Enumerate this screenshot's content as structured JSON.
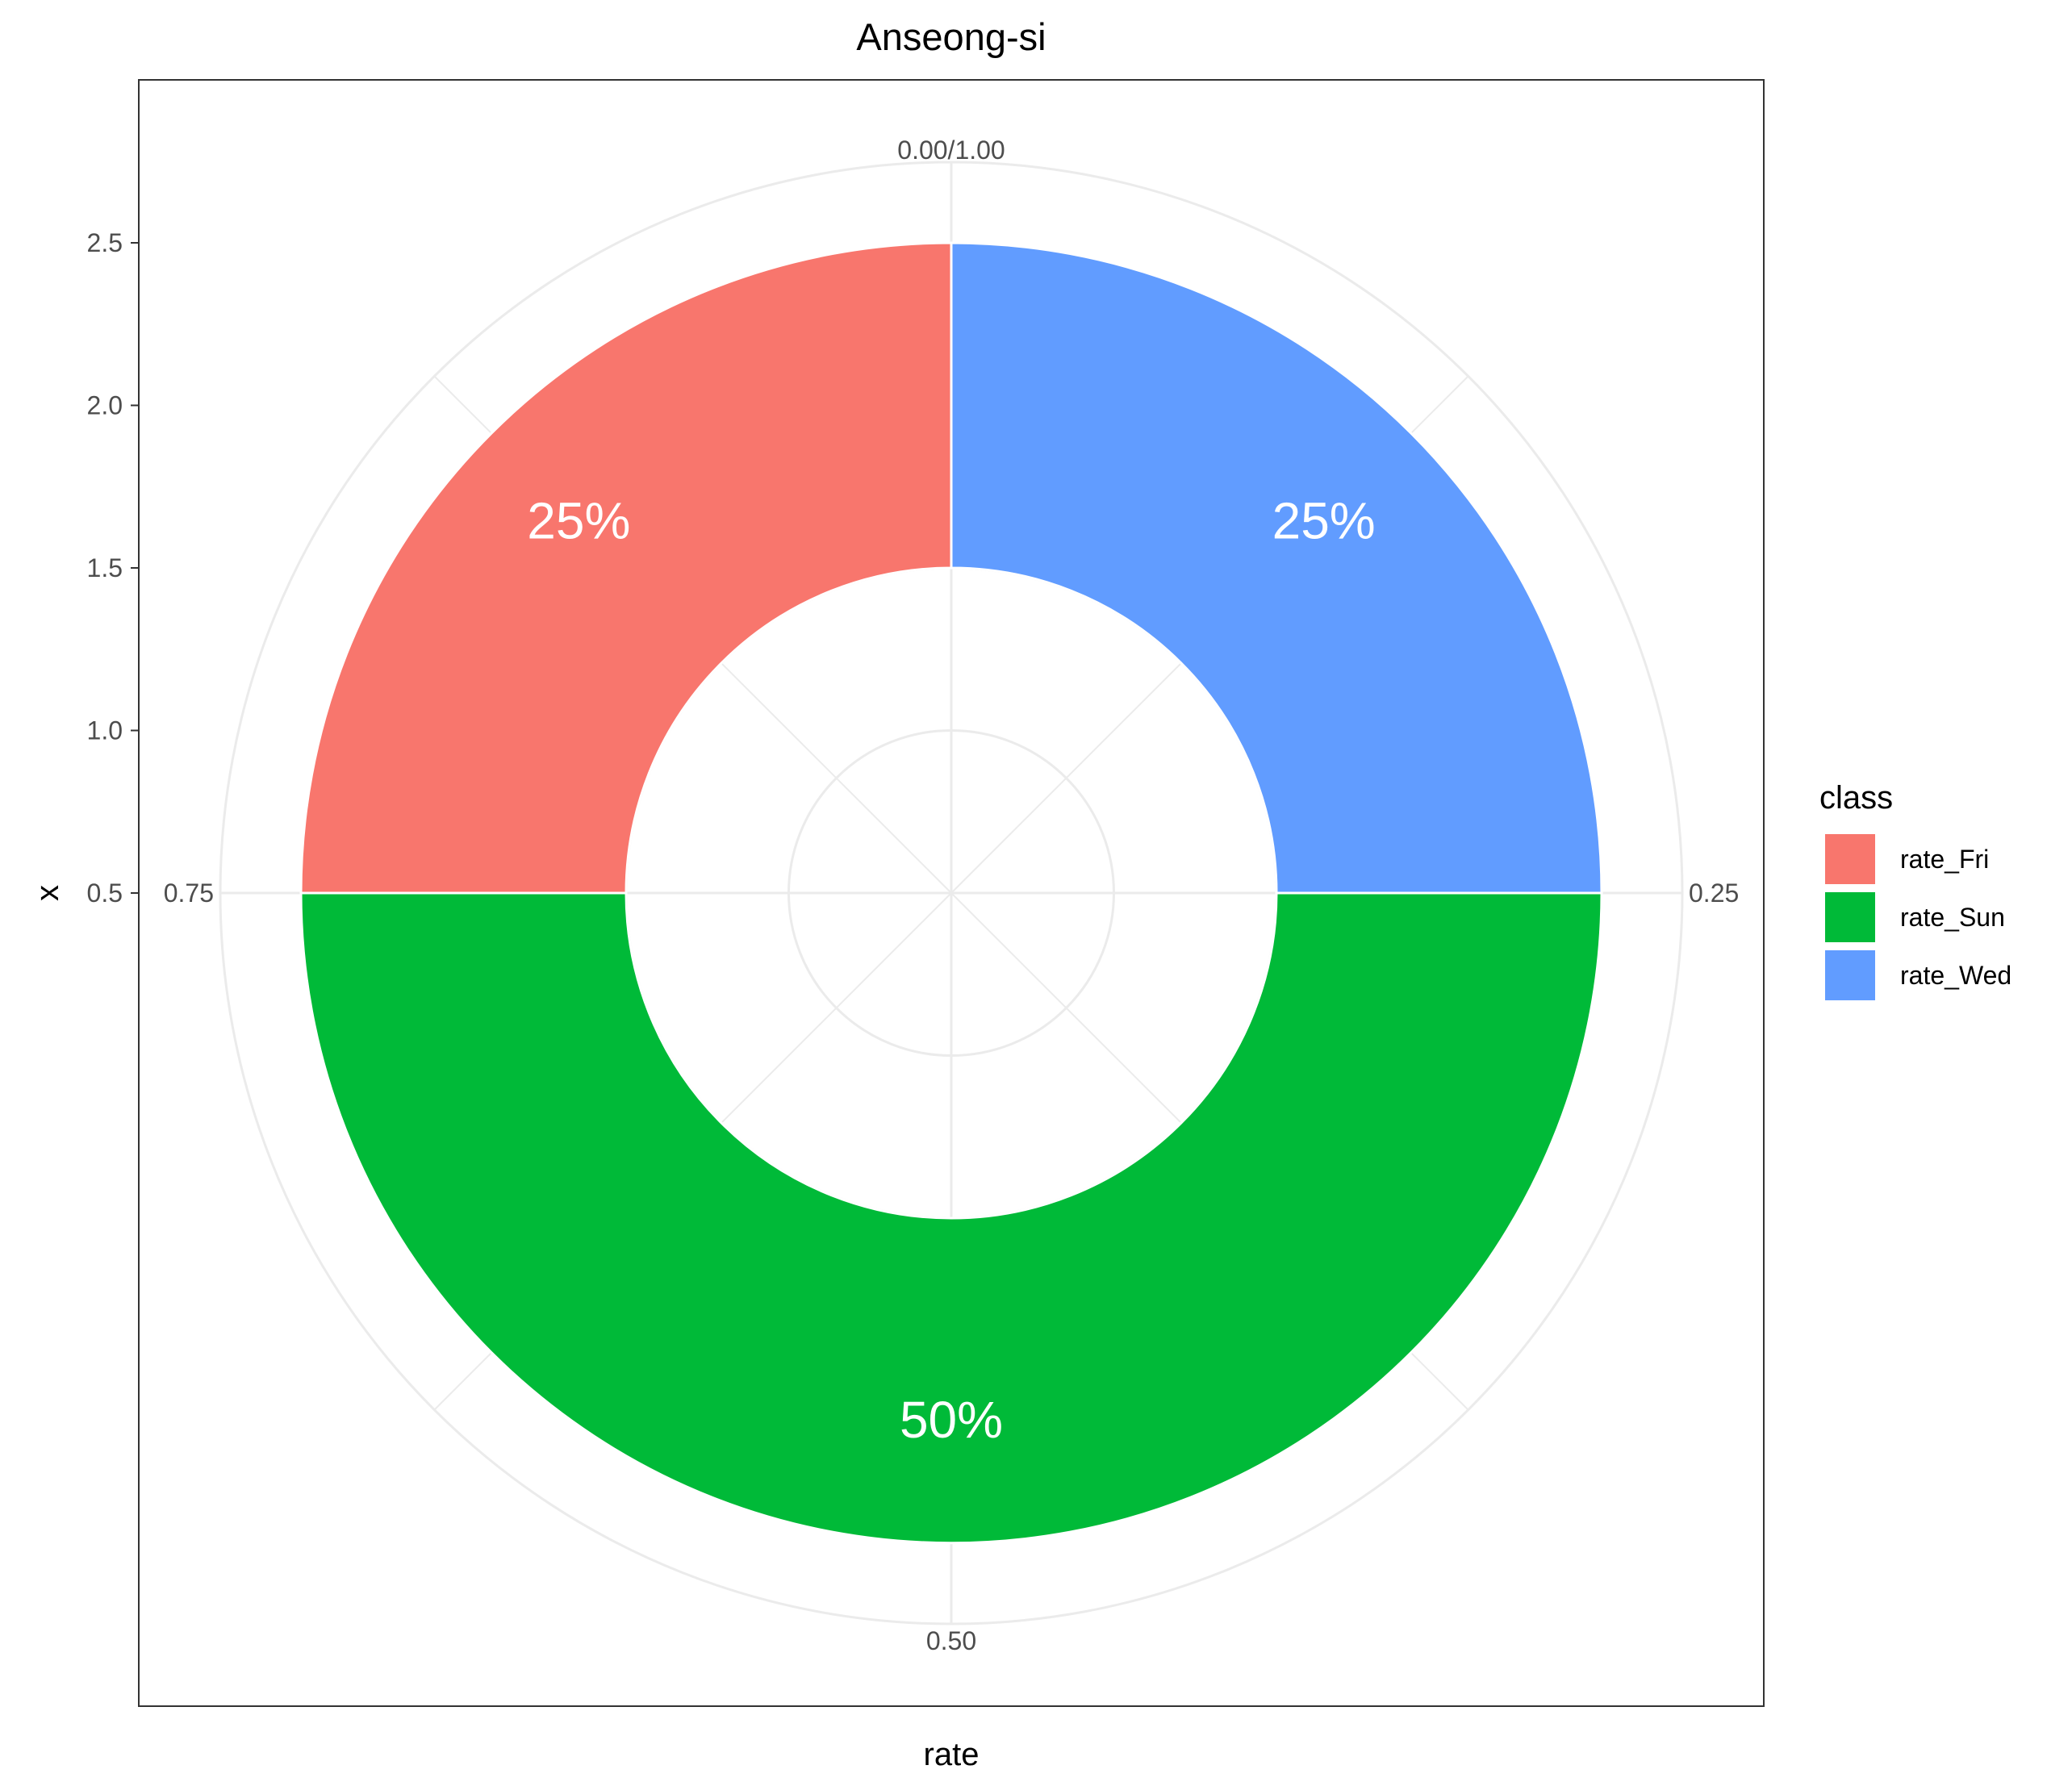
{
  "chart_data": {
    "type": "pie",
    "title": "Anseong-si",
    "xlabel": "rate",
    "ylabel": "x",
    "x_ticks": [
      "0.5",
      "1.0",
      "1.5",
      "2.0",
      "2.5"
    ],
    "angle_ticks": [
      {
        "value": 0,
        "label": "0.00/1.00"
      },
      {
        "value": 0.25,
        "label": "0.25"
      },
      {
        "value": 0.5,
        "label": "0.50"
      },
      {
        "value": 0.75,
        "label": "0.75"
      }
    ],
    "categories": [
      "rate_Wed",
      "rate_Sun",
      "rate_Fri"
    ],
    "values": [
      0.25,
      0.5,
      0.25
    ],
    "labels": [
      "25%",
      "50%",
      "25%"
    ],
    "colors": [
      "#619CFF",
      "#00BA38",
      "#F8766D"
    ],
    "grid": true,
    "legend": {
      "title": "class",
      "placement": "right",
      "entries": [
        {
          "label": "rate_Fri",
          "color": "#F8766D"
        },
        {
          "label": "rate_Sun",
          "color": "#00BA38"
        },
        {
          "label": "rate_Wed",
          "color": "#619CFF"
        }
      ]
    }
  }
}
